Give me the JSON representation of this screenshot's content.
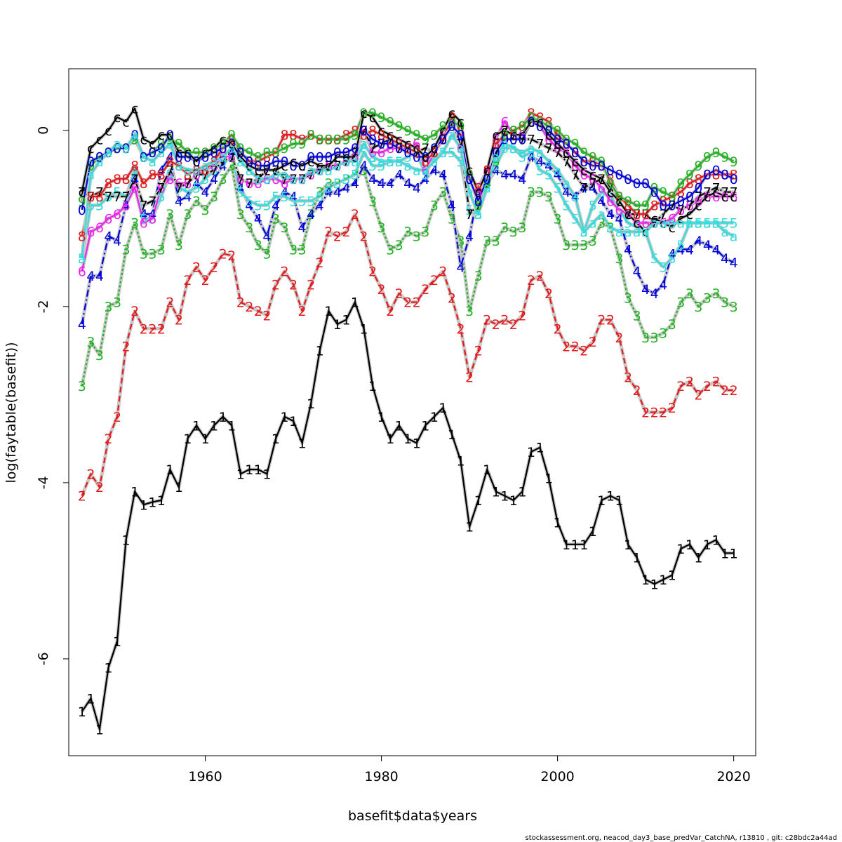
{
  "chart_data": {
    "type": "line",
    "xlabel": "basefit$data$years",
    "ylabel": "log(faytable(basefit))",
    "xlim": [
      1944.5,
      2022.5
    ],
    "ylim": [
      -7.1,
      0.7
    ],
    "x_ticks": [
      "1960",
      "1980",
      "2000",
      "2020"
    ],
    "y_ticks": [
      "-6",
      "-4",
      "-2",
      "0"
    ],
    "grid": false,
    "legend": "none",
    "footer": "stockassessment.org, neacod_day3_base_predVar_CatchNA, r13810 , git: c28bdc2a44ad",
    "x": [
      1946,
      1947,
      1948,
      1949,
      1950,
      1951,
      1952,
      1953,
      1954,
      1955,
      1956,
      1957,
      1958,
      1959,
      1960,
      1961,
      1962,
      1963,
      1964,
      1965,
      1966,
      1967,
      1968,
      1969,
      1970,
      1971,
      1972,
      1973,
      1974,
      1975,
      1976,
      1977,
      1978,
      1979,
      1980,
      1981,
      1982,
      1983,
      1984,
      1985,
      1986,
      1987,
      1988,
      1989,
      1990,
      1991,
      1992,
      1993,
      1994,
      1995,
      1996,
      1997,
      1998,
      1999,
      2000,
      2001,
      2002,
      2003,
      2004,
      2005,
      2006,
      2007,
      2008,
      2009,
      2010,
      2011,
      2012,
      2013,
      2014,
      2015,
      2016,
      2017,
      2018,
      2019,
      2020
    ],
    "series": [
      {
        "label": "1",
        "color": "#000000",
        "dash": "",
        "values": [
          -6.6,
          -6.45,
          -6.8,
          -6.1,
          -5.8,
          -4.65,
          -4.1,
          -4.25,
          -4.22,
          -4.2,
          -3.85,
          -4.05,
          -3.5,
          -3.35,
          -3.5,
          -3.35,
          -3.25,
          -3.35,
          -3.9,
          -3.85,
          -3.85,
          -3.9,
          -3.5,
          -3.25,
          -3.3,
          -3.55,
          -3.1,
          -2.5,
          -2.05,
          -2.2,
          -2.15,
          -1.95,
          -2.25,
          -2.9,
          -3.25,
          -3.5,
          -3.35,
          -3.5,
          -3.55,
          -3.35,
          -3.25,
          -3.15,
          -3.45,
          -3.75,
          -4.5,
          -4.2,
          -3.85,
          -4.1,
          -4.15,
          -4.2,
          -4.1,
          -3.65,
          -3.6,
          -3.95,
          -4.45,
          -4.7,
          -4.7,
          -4.7,
          -4.55,
          -4.2,
          -4.15,
          -4.2,
          -4.7,
          -4.85,
          -5.1,
          -5.15,
          -5.1,
          -5.05,
          -4.75,
          -4.7,
          -4.85,
          -4.7,
          -4.65,
          -4.8,
          -4.8
        ]
      },
      {
        "label": "2",
        "color": "#e41a1c",
        "dash": "8,5",
        "values": [
          -4.15,
          -3.9,
          -4.05,
          -3.5,
          -3.25,
          -2.45,
          -2.05,
          -2.25,
          -2.25,
          -2.25,
          -1.95,
          -2.15,
          -1.7,
          -1.55,
          -1.7,
          -1.55,
          -1.4,
          -1.42,
          -1.95,
          -2.0,
          -2.05,
          -2.1,
          -1.75,
          -1.6,
          -1.75,
          -2.05,
          -1.75,
          -1.5,
          -1.15,
          -1.2,
          -1.15,
          -0.95,
          -1.2,
          -1.6,
          -1.8,
          -2.05,
          -1.85,
          -1.95,
          -1.95,
          -1.8,
          -1.7,
          -1.6,
          -1.9,
          -2.25,
          -2.8,
          -2.5,
          -2.15,
          -2.2,
          -2.15,
          -2.2,
          -2.1,
          -1.7,
          -1.65,
          -1.85,
          -2.25,
          -2.45,
          -2.45,
          -2.5,
          -2.4,
          -2.15,
          -2.15,
          -2.35,
          -2.8,
          -2.95,
          -3.2,
          -3.2,
          -3.2,
          -3.15,
          -2.9,
          -2.85,
          -3.0,
          -2.9,
          -2.85,
          -2.95,
          -2.95
        ]
      },
      {
        "label": "3",
        "color": "#22b322",
        "dash": "3,3",
        "values": [
          -2.9,
          -2.4,
          -2.55,
          -2.0,
          -1.95,
          -1.35,
          -1.05,
          -1.4,
          -1.4,
          -1.35,
          -0.95,
          -1.3,
          -0.95,
          -0.8,
          -0.9,
          -0.75,
          -0.55,
          -0.4,
          -0.95,
          -1.1,
          -1.3,
          -1.4,
          -1.0,
          -1.1,
          -1.35,
          -1.35,
          -0.95,
          -0.7,
          -0.6,
          -0.6,
          -0.55,
          -0.5,
          -0.45,
          -0.8,
          -1.1,
          -1.35,
          -1.3,
          -1.15,
          -1.2,
          -1.15,
          -0.85,
          -0.7,
          -1.0,
          -1.25,
          -2.05,
          -1.65,
          -1.25,
          -1.25,
          -1.1,
          -1.15,
          -1.1,
          -0.7,
          -0.7,
          -0.75,
          -1.0,
          -1.3,
          -1.3,
          -1.3,
          -1.25,
          -1.05,
          -1.1,
          -1.45,
          -1.9,
          -2.1,
          -2.35,
          -2.35,
          -2.3,
          -2.2,
          -1.95,
          -1.85,
          -2.0,
          -1.9,
          -1.85,
          -1.95,
          -2.0
        ]
      },
      {
        "label": "4",
        "color": "#0000dd",
        "dash": "10,4,2,4",
        "values": [
          -2.2,
          -1.65,
          -1.65,
          -1.2,
          -1.25,
          -0.85,
          -0.55,
          -0.95,
          -0.95,
          -0.45,
          -0.3,
          -0.8,
          -0.75,
          -0.6,
          -0.7,
          -0.55,
          -0.4,
          -0.25,
          -0.65,
          -0.85,
          -1.0,
          -1.2,
          -0.85,
          -0.7,
          -0.75,
          -1.1,
          -0.95,
          -0.85,
          -0.7,
          -0.7,
          -0.65,
          -0.6,
          -0.4,
          -0.55,
          -0.6,
          -0.6,
          -0.5,
          -0.6,
          -0.65,
          -0.55,
          -0.45,
          -0.5,
          -0.85,
          -1.55,
          -1.2,
          -0.7,
          -0.6,
          -0.45,
          -0.5,
          -0.5,
          -0.55,
          -0.3,
          -0.35,
          -0.4,
          -0.5,
          -0.7,
          -0.75,
          -0.65,
          -0.65,
          -0.8,
          -0.95,
          -1.0,
          -1.35,
          -1.6,
          -1.8,
          -1.85,
          -1.75,
          -1.4,
          -1.35,
          -1.35,
          -1.25,
          -1.3,
          -1.35,
          -1.45,
          -1.5
        ]
      },
      {
        "label": "5",
        "color": "#33dddd",
        "dash": "",
        "values": [
          -1.45,
          -0.85,
          -0.85,
          -0.75,
          -0.7,
          -0.75,
          -0.45,
          -1.0,
          -1.0,
          -0.75,
          -0.5,
          -0.65,
          -0.7,
          -0.65,
          -0.55,
          -0.45,
          -0.35,
          -0.3,
          -0.7,
          -0.8,
          -0.85,
          -0.85,
          -0.75,
          -0.75,
          -0.8,
          -0.8,
          -0.8,
          -0.75,
          -0.65,
          -0.6,
          -0.55,
          -0.5,
          -0.25,
          -0.4,
          -0.4,
          -0.35,
          -0.35,
          -0.3,
          -0.25,
          -0.5,
          -0.3,
          -0.25,
          -0.25,
          -0.35,
          -0.9,
          -0.95,
          -0.6,
          -0.4,
          -0.2,
          -0.2,
          -0.3,
          -0.25,
          -0.45,
          -0.5,
          -0.65,
          -0.85,
          -1.0,
          -1.15,
          -0.85,
          -0.7,
          -0.75,
          -0.9,
          -1.05,
          -1.1,
          -1.15,
          -1.45,
          -1.55,
          -1.45,
          -1.3,
          -1.05,
          -1.05,
          -1.05,
          -1.05,
          -1.05,
          -1.05
        ]
      },
      {
        "label": "6",
        "color": "#ee22ee",
        "dash": "",
        "values": [
          -1.6,
          -1.15,
          -1.1,
          -1.0,
          -0.95,
          -0.85,
          -0.65,
          -1.05,
          -1.0,
          -0.65,
          -0.55,
          -0.6,
          -0.6,
          -0.5,
          -0.45,
          -0.4,
          -0.3,
          -0.3,
          -0.55,
          -0.6,
          -0.6,
          -0.55,
          -0.55,
          -0.6,
          -0.55,
          -0.55,
          -0.5,
          -0.45,
          -0.4,
          -0.4,
          -0.35,
          -0.3,
          0.0,
          -0.25,
          -0.25,
          -0.2,
          -0.2,
          -0.2,
          -0.15,
          -0.45,
          -0.25,
          -0.05,
          0.1,
          -0.2,
          -0.55,
          -0.7,
          -0.45,
          -0.1,
          0.1,
          -0.05,
          -0.05,
          0.1,
          0.05,
          -0.1,
          -0.2,
          -0.25,
          -0.4,
          -0.5,
          -0.55,
          -0.65,
          -0.8,
          -0.9,
          -0.95,
          -1.05,
          -1.05,
          -1.05,
          -1.05,
          -1.0,
          -0.9,
          -0.85,
          -0.8,
          -0.75,
          -0.75,
          -0.75,
          -0.75
        ]
      },
      {
        "label": "7",
        "color": "#000000",
        "dash": "10,4,2,4",
        "values": [
          -0.7,
          -0.75,
          -0.7,
          -0.75,
          -0.75,
          -0.75,
          -0.55,
          -0.85,
          -0.8,
          -0.65,
          -0.45,
          -0.65,
          -0.6,
          -0.5,
          -0.5,
          -0.45,
          -0.35,
          -0.3,
          -0.55,
          -0.6,
          -0.55,
          -0.45,
          -0.45,
          -0.55,
          -0.55,
          -0.55,
          -0.5,
          -0.45,
          -0.4,
          -0.4,
          -0.35,
          -0.25,
          0.0,
          -0.2,
          -0.15,
          -0.1,
          -0.2,
          -0.2,
          -0.25,
          -0.2,
          -0.25,
          -0.1,
          0.1,
          -0.15,
          -0.95,
          -0.85,
          -0.6,
          -0.25,
          0.0,
          -0.05,
          -0.1,
          -0.1,
          -0.15,
          -0.2,
          -0.25,
          -0.35,
          -0.5,
          -0.65,
          -0.6,
          -0.55,
          -0.65,
          -0.8,
          -0.95,
          -0.95,
          -0.95,
          -1.05,
          -0.95,
          -0.85,
          -0.9,
          -0.85,
          -0.75,
          -0.7,
          -0.65,
          -0.7,
          -0.7
        ]
      },
      {
        "label": "8",
        "color": "#e41a1c",
        "dash": "",
        "values": [
          -1.2,
          -0.75,
          -0.75,
          -0.6,
          -0.55,
          -0.55,
          -0.4,
          -0.6,
          -0.5,
          -0.5,
          -0.35,
          -0.4,
          -0.5,
          -0.45,
          -0.45,
          -0.35,
          -0.2,
          -0.1,
          -0.25,
          -0.35,
          -0.35,
          -0.3,
          -0.25,
          -0.05,
          -0.05,
          -0.1,
          -0.05,
          -0.1,
          -0.1,
          -0.1,
          -0.05,
          0.0,
          -0.05,
          0.0,
          -0.05,
          -0.1,
          -0.15,
          -0.2,
          -0.25,
          -0.35,
          -0.25,
          -0.1,
          0.15,
          0.0,
          -0.5,
          -0.65,
          -0.45,
          -0.15,
          -0.05,
          0.0,
          0.05,
          0.2,
          0.15,
          0.1,
          -0.05,
          -0.15,
          -0.25,
          -0.35,
          -0.35,
          -0.4,
          -0.55,
          -0.75,
          -0.85,
          -0.95,
          -0.95,
          -0.85,
          -0.8,
          -0.75,
          -0.7,
          -0.6,
          -0.55,
          -0.5,
          -0.5,
          -0.5,
          -0.5
        ]
      },
      {
        "label": "9",
        "color": "#22b322",
        "dash": "",
        "values": [
          -0.8,
          -0.4,
          -0.3,
          -0.25,
          -0.2,
          -0.2,
          -0.1,
          -0.3,
          -0.25,
          -0.15,
          -0.1,
          -0.15,
          -0.25,
          -0.25,
          -0.25,
          -0.2,
          -0.15,
          -0.05,
          -0.2,
          -0.25,
          -0.3,
          -0.25,
          -0.25,
          -0.2,
          -0.15,
          -0.15,
          -0.05,
          -0.1,
          -0.1,
          -0.1,
          -0.1,
          -0.05,
          0.2,
          0.2,
          0.15,
          0.1,
          0.05,
          0.0,
          -0.05,
          -0.1,
          -0.05,
          0.05,
          0.1,
          0.05,
          -0.5,
          -0.85,
          -0.6,
          -0.35,
          -0.05,
          0.0,
          0.05,
          0.15,
          0.1,
          0.05,
          0.0,
          -0.1,
          -0.15,
          -0.25,
          -0.3,
          -0.35,
          -0.6,
          -0.75,
          -0.8,
          -0.85,
          -0.85,
          -0.65,
          -0.7,
          -0.75,
          -0.6,
          -0.5,
          -0.4,
          -0.3,
          -0.25,
          -0.3,
          -0.35
        ]
      },
      {
        "label": "0",
        "color": "#0000dd",
        "dash": "",
        "values": [
          -0.9,
          -0.35,
          -0.3,
          -0.25,
          -0.2,
          -0.2,
          -0.05,
          -0.3,
          -0.25,
          -0.2,
          -0.05,
          -0.3,
          -0.3,
          -0.35,
          -0.3,
          -0.25,
          -0.2,
          -0.15,
          -0.25,
          -0.35,
          -0.4,
          -0.4,
          -0.35,
          -0.35,
          -0.4,
          -0.4,
          -0.3,
          -0.3,
          -0.3,
          -0.25,
          -0.25,
          -0.2,
          0.0,
          -0.1,
          -0.15,
          -0.15,
          -0.2,
          -0.25,
          -0.3,
          -0.3,
          -0.2,
          -0.1,
          0.05,
          -0.05,
          -0.55,
          -0.8,
          -0.55,
          -0.25,
          -0.1,
          -0.1,
          -0.1,
          0.1,
          0.05,
          0.0,
          -0.1,
          -0.15,
          -0.25,
          -0.35,
          -0.4,
          -0.4,
          -0.45,
          -0.5,
          -0.55,
          -0.6,
          -0.6,
          -0.7,
          -0.85,
          -0.85,
          -0.8,
          -0.75,
          -0.65,
          -0.5,
          -0.45,
          -0.5,
          -0.55
        ]
      },
      {
        "label": "c",
        "color": "#000000",
        "dash": "",
        "values": [
          -0.7,
          -0.2,
          -0.1,
          0.0,
          0.15,
          0.1,
          0.25,
          -0.1,
          -0.15,
          -0.05,
          -0.05,
          -0.25,
          -0.25,
          -0.35,
          -0.25,
          -0.2,
          -0.1,
          -0.15,
          -0.3,
          -0.4,
          -0.45,
          -0.45,
          -0.45,
          -0.4,
          -0.35,
          -0.4,
          -0.35,
          -0.4,
          -0.4,
          -0.3,
          -0.3,
          -0.3,
          0.2,
          0.15,
          0.0,
          -0.05,
          -0.1,
          -0.15,
          -0.2,
          -0.3,
          -0.2,
          0.0,
          0.2,
          0.1,
          -0.45,
          -0.7,
          -0.45,
          -0.05,
          0.0,
          -0.05,
          -0.05,
          0.1,
          0.1,
          -0.05,
          -0.15,
          -0.25,
          -0.35,
          -0.45,
          -0.5,
          -0.55,
          -0.7,
          -0.8,
          -0.95,
          -1.05,
          -1.15,
          -1.0,
          -1.05,
          -1.1,
          -1.0,
          -0.95,
          -0.85,
          -0.75,
          -0.7,
          -0.75,
          -0.75
        ]
      },
      {
        "label": "a",
        "color": "#33dddd",
        "dash": "",
        "values": [
          -1.45,
          -0.5,
          -0.35,
          -0.25,
          -0.15,
          -0.2,
          -0.05,
          -0.3,
          -0.35,
          -0.25,
          -0.15,
          -0.4,
          -0.45,
          -0.45,
          -0.4,
          -0.35,
          -0.3,
          -0.2,
          -0.35,
          -0.45,
          -0.55,
          -0.55,
          -0.5,
          -0.5,
          -0.55,
          -0.55,
          -0.45,
          -0.45,
          -0.45,
          -0.4,
          -0.35,
          -0.35,
          -0.15,
          -0.3,
          -0.35,
          -0.35,
          -0.35,
          -0.4,
          -0.45,
          -0.45,
          -0.35,
          -0.25,
          -0.05,
          -0.2,
          -0.7,
          -0.95,
          -0.65,
          -0.3,
          -0.15,
          -0.2,
          -0.25,
          -0.2,
          -0.25,
          -0.35,
          -0.45,
          -0.6,
          -0.75,
          -1.15,
          -1.05,
          -0.95,
          -1.1,
          -1.15,
          -1.15,
          -1.15,
          -1.15,
          -1.05,
          -1.05,
          -1.05,
          -1.05,
          -1.05,
          -1.05,
          -1.05,
          -1.05,
          -1.15,
          -1.2
        ]
      }
    ]
  }
}
